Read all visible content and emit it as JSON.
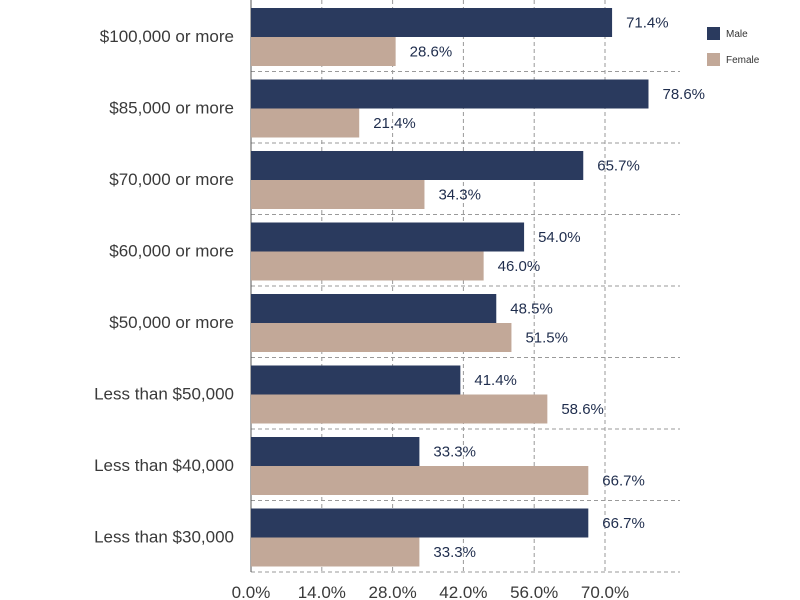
{
  "chart_data": {
    "type": "bar",
    "orientation": "horizontal",
    "title": "",
    "xlabel": "",
    "ylabel": "",
    "categories": [
      "$100,000 or more",
      "$85,000 or more",
      "$70,000 or more",
      "$60,000 or more",
      "$50,000 or more",
      "Less than $50,000",
      "Less than $40,000",
      "Less than $30,000"
    ],
    "series": [
      {
        "name": "Male",
        "color": "#2a3a5e",
        "values": [
          71.4,
          78.6,
          65.7,
          54.0,
          48.5,
          41.4,
          33.3,
          66.7
        ],
        "labels": [
          "71.4%",
          "78.6%",
          "65.7%",
          "54.0%",
          "48.5%",
          "41.4%",
          "33.3%",
          "66.7%"
        ]
      },
      {
        "name": "Female",
        "color": "#c2a898",
        "values": [
          28.6,
          21.4,
          34.3,
          46.0,
          51.5,
          58.6,
          66.7,
          33.3
        ],
        "labels": [
          "28.6%",
          "21.4%",
          "34.3%",
          "46.0%",
          "51.5%",
          "58.6%",
          "66.7%",
          "33.3%"
        ]
      }
    ],
    "xlim": [
      0,
      80
    ],
    "xticks": [
      0,
      14,
      28,
      42,
      56,
      70
    ],
    "xtick_labels": [
      "0.0%",
      "14.0%",
      "28.0%",
      "42.0%",
      "56.0%",
      "70.0%"
    ],
    "grid": true,
    "legend_position": "top-right"
  }
}
